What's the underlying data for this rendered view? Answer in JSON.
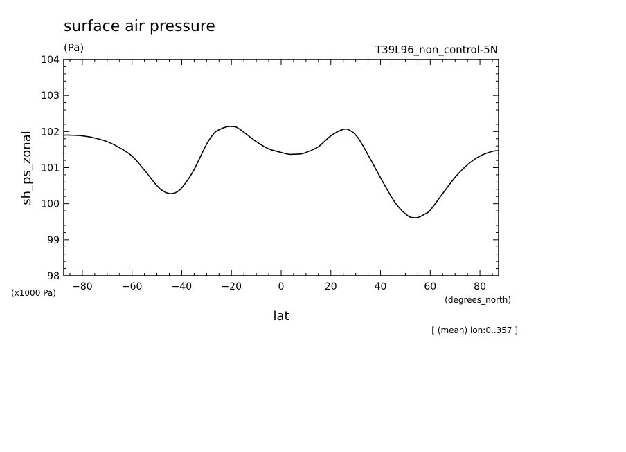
{
  "chart_data": {
    "type": "line",
    "title": "surface air pressure",
    "units": "(Pa)",
    "run_label": "T39L96_non_control-5N",
    "xlabel": "lat",
    "xunits": "(degrees_north)",
    "ylabel": "sh_ps_zonal",
    "yunits": "(x1000 Pa)",
    "averaging_note": "[ (mean) lon:0..357 ]",
    "xlim": [
      -87.5,
      87.5
    ],
    "ylim": [
      98,
      104
    ],
    "xticks": [
      -80,
      -60,
      -40,
      -20,
      0,
      20,
      40,
      60,
      80
    ],
    "yticks": [
      98,
      99,
      100,
      101,
      102,
      103,
      104
    ],
    "grid": false,
    "legend": "none",
    "series": [
      {
        "color": "#000000",
        "x": [
          -87.5,
          -85,
          -80,
          -75,
          -70,
          -65,
          -60,
          -55,
          -50,
          -47,
          -44,
          -41,
          -38,
          -35,
          -30,
          -27,
          -25,
          -22,
          -20,
          -18,
          -15,
          -10,
          -5,
          0,
          3,
          5,
          8,
          10,
          15,
          20,
          25,
          28,
          31,
          35,
          40,
          45,
          48,
          50,
          52,
          55,
          58,
          60,
          65,
          70,
          75,
          80,
          85,
          87.5
        ],
        "y": [
          101.9,
          101.9,
          101.88,
          101.82,
          101.72,
          101.55,
          101.32,
          100.93,
          100.5,
          100.33,
          100.28,
          100.37,
          100.62,
          100.95,
          101.65,
          101.95,
          102.05,
          102.13,
          102.14,
          102.12,
          101.98,
          101.72,
          101.52,
          101.42,
          101.37,
          101.37,
          101.38,
          101.42,
          101.58,
          101.88,
          102.06,
          102.02,
          101.82,
          101.35,
          100.72,
          100.12,
          99.85,
          99.72,
          99.63,
          99.62,
          99.72,
          99.82,
          100.28,
          100.73,
          101.08,
          101.32,
          101.45,
          101.47
        ]
      }
    ]
  }
}
